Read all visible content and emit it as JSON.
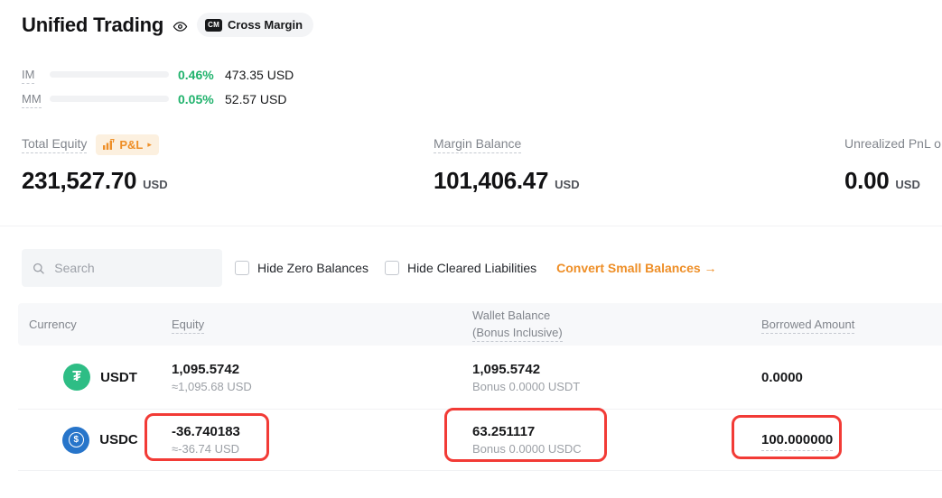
{
  "colors": {
    "green": "#20B26C",
    "orange": "#EE8E26",
    "flag_red": "#F23B36",
    "usdt_green": "#2EBD85",
    "usdc_blue": "#2775CA"
  },
  "header": {
    "title": "Unified Trading",
    "margin_mode": "Cross Margin",
    "cm_badge": "CM"
  },
  "meters": {
    "im": {
      "label": "IM",
      "percent": "0.46%",
      "amount": "473.35 USD",
      "fill": "3%"
    },
    "mm": {
      "label": "MM",
      "percent": "0.05%",
      "amount": "52.57 USD",
      "fill": "1.5%"
    }
  },
  "summary": {
    "total_equity": {
      "label": "Total Equity",
      "pnl_badge": "P&L",
      "pnl_arrow": "▸",
      "value": "231,527.70",
      "unit": "USD"
    },
    "margin_balance": {
      "label": "Margin Balance",
      "value": "101,406.47",
      "unit": "USD"
    },
    "unrealized_pnl": {
      "label": "Unrealized PnL o",
      "value": "0.00",
      "unit": "USD"
    }
  },
  "filters": {
    "search_placeholder": "Search",
    "hide_zero": "Hide Zero Balances",
    "hide_cleared": "Hide Cleared Liabilities",
    "convert_link": "Convert Small Balances →"
  },
  "table": {
    "headers": {
      "currency": "Currency",
      "equity": "Equity",
      "wallet_line1": "Wallet Balance",
      "wallet_line2": "(Bonus Inclusive)",
      "borrowed": "Borrowed Amount"
    },
    "rows": [
      {
        "symbol": "USDT",
        "icon_glyph": "₮",
        "equity": "1,095.5742",
        "equity_usd": "≈1,095.68 USD",
        "wallet": "1,095.5742",
        "wallet_bonus": "Bonus 0.0000 USDT",
        "borrowed": "0.0000"
      },
      {
        "symbol": "USDC",
        "icon_glyph": "$",
        "equity": "-36.740183",
        "equity_usd": "≈-36.74 USD",
        "wallet": "63.251117",
        "wallet_bonus": "Bonus 0.0000 USDC",
        "borrowed": "100.000000"
      }
    ]
  }
}
